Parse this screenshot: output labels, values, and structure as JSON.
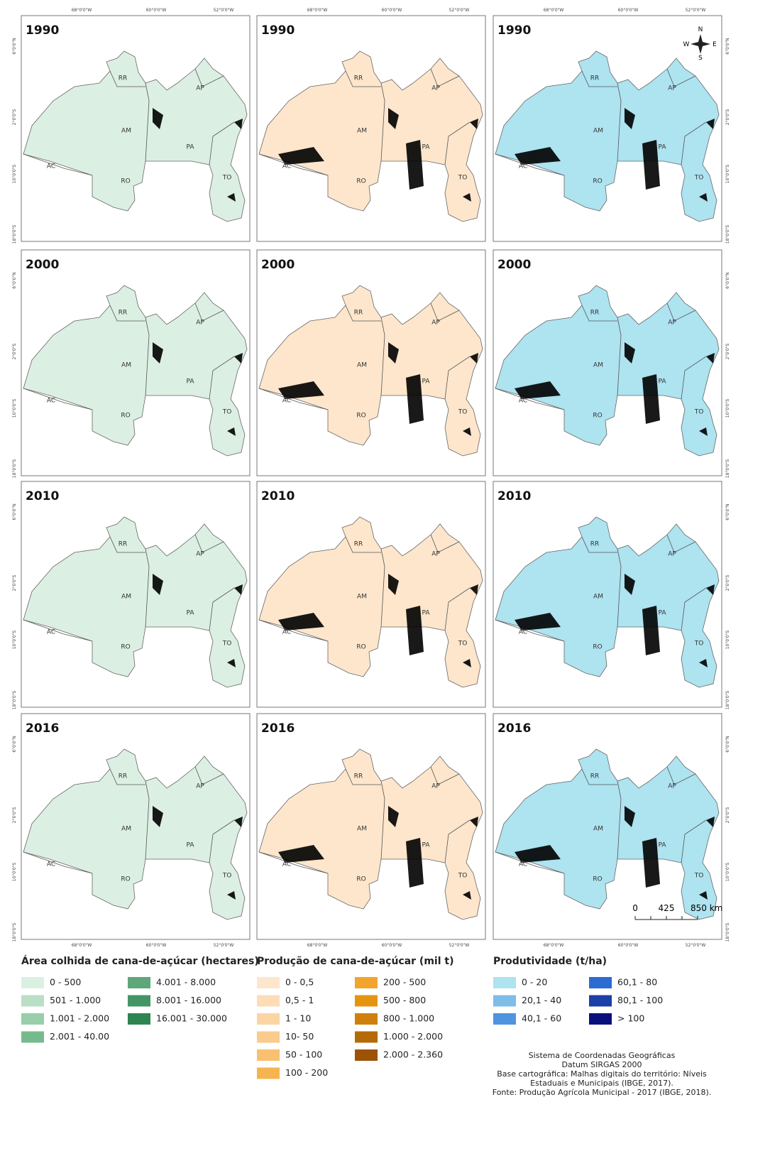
{
  "rows": [
    "1990",
    "2000",
    "2010",
    "2016"
  ],
  "state_labels": [
    "RR",
    "AP",
    "AM",
    "PA",
    "AC",
    "RO",
    "TO"
  ],
  "longitude_labels": [
    "68°0'0\"W",
    "60°0'0\"W",
    "52°0'0\"W"
  ],
  "latitude_labels": [
    "6°0'0\"N",
    "2°0'0\"S",
    "10°0'0\"S",
    "18°0'0\"S"
  ],
  "north_arrow": [
    "N",
    "W",
    "E",
    "S"
  ],
  "scale_bar": [
    "0",
    "425",
    "850 km"
  ],
  "legends": [
    {
      "title": "Área colhida de cana-de-açúcar (hectares)",
      "columns": [
        [
          {
            "label": "0 - 500",
            "color": "#dcefe3"
          },
          {
            "label": "501 - 1.000",
            "color": "#b9dfc6"
          },
          {
            "label": "1.001 - 2.000",
            "color": "#98cfaa"
          },
          {
            "label": "2.001 - 40.00",
            "color": "#76bb8e"
          }
        ],
        [
          {
            "label": "4.001 - 8.000",
            "color": "#5ea77a"
          },
          {
            "label": "8.001 - 16.000",
            "color": "#449565"
          },
          {
            "label": "16.001 - 30.000",
            "color": "#2e8552"
          }
        ]
      ]
    },
    {
      "title": "Produção de cana-de-açúcar (mil t)",
      "columns": [
        [
          {
            "label": "0 - 0,5",
            "color": "#fde6cc"
          },
          {
            "label": "0,5 - 1",
            "color": "#fcddb8"
          },
          {
            "label": "1 - 10",
            "color": "#fbd5a4"
          },
          {
            "label": "10- 50",
            "color": "#facb8c"
          },
          {
            "label": "50 - 100",
            "color": "#f8c070"
          },
          {
            "label": "100 - 200",
            "color": "#f5b450"
          }
        ],
        [
          {
            "label": "200 - 500",
            "color": "#f2a52c"
          },
          {
            "label": "500 - 800",
            "color": "#e59412"
          },
          {
            "label": "800 - 1.000",
            "color": "#cf800c"
          },
          {
            "label": "1.000 - 2.000",
            "color": "#b56a08"
          },
          {
            "label": "2.000 - 2.360",
            "color": "#9c5306"
          }
        ]
      ]
    },
    {
      "title": "Produtividade (t/ha)",
      "columns": [
        [
          {
            "label": "0 - 20",
            "color": "#aee3f0"
          },
          {
            "label": "20,1 - 40",
            "color": "#7fbde9"
          },
          {
            "label": "40,1 - 60",
            "color": "#4e94e0"
          }
        ],
        [
          {
            "label": "60,1 - 80",
            "color": "#2c6bd1"
          },
          {
            "label": "80,1 - 100",
            "color": "#1c3fa8"
          },
          {
            "label": "> 100",
            "color": "#0b0f7e"
          }
        ]
      ]
    }
  ],
  "credits": [
    "Sistema de Coordenadas Geográficas",
    "Datum SIRGAS 2000",
    "Base cartográfica: Malhas digitais do território: Níveis",
    "Estaduais e Municipais (IBGE, 2017).",
    "Fonte: Produção Agrícola Municipal - 2017 (IBGE, 2018)."
  ]
}
